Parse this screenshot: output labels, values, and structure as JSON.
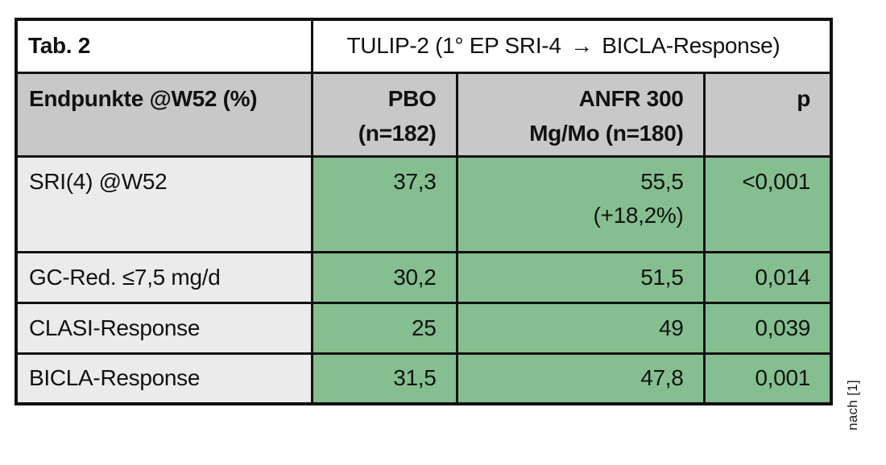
{
  "table": {
    "tag": "Tab. 2",
    "title_left": "TULIP-2 (1° EP SRI-4",
    "title_arrow": "→",
    "title_right": "BICLA-Response)",
    "header": {
      "endpoints": "Endpunkte @W52 (%)",
      "pbo_line1": "PBO",
      "pbo_line2": "(n=182)",
      "anfr_line1": "ANFR 300",
      "anfr_line2": "Mg/Mo (n=180)",
      "p": "p"
    },
    "rows": [
      {
        "label": "SRI(4) @W52",
        "pbo": "37,3",
        "anfr": "55,5",
        "anfr_note": "(+18,2%)",
        "p": "<0,001"
      },
      {
        "label": "GC-Red. ≤7,5 mg/d",
        "pbo": "30,2",
        "anfr": "51,5",
        "anfr_note": "",
        "p": "0,014"
      },
      {
        "label": "CLASI-Response",
        "pbo": "25",
        "anfr": "49",
        "anfr_note": "",
        "p": "0,039"
      },
      {
        "label": "BICLA-Response",
        "pbo": "31,5",
        "anfr": "47,8",
        "anfr_note": "",
        "p": "0,001"
      }
    ],
    "source_note": "nach [1]"
  },
  "colors": {
    "header_bg": "#c8c8c8",
    "label_bg": "#ebebeb",
    "value_bg": "#85bf90",
    "border": "#111111",
    "background": "#ffffff"
  },
  "chart_data": {
    "type": "table",
    "title": "TULIP-2 (1° EP SRI-4 → BICLA-Response)",
    "columns": [
      "Endpunkte @W52 (%)",
      "PBO (n=182)",
      "ANFR 300 Mg/Mo (n=180)",
      "p"
    ],
    "rows": [
      [
        "SRI(4) @W52",
        "37,3",
        "55,5 (+18,2%)",
        "<0,001"
      ],
      [
        "GC-Red. ≤7,5 mg/d",
        "30,2",
        "51,5",
        "0,014"
      ],
      [
        "CLASI-Response",
        "25",
        "49",
        "0,039"
      ],
      [
        "BICLA-Response",
        "31,5",
        "47,8",
        "0,001"
      ]
    ],
    "source": "nach [1]"
  }
}
